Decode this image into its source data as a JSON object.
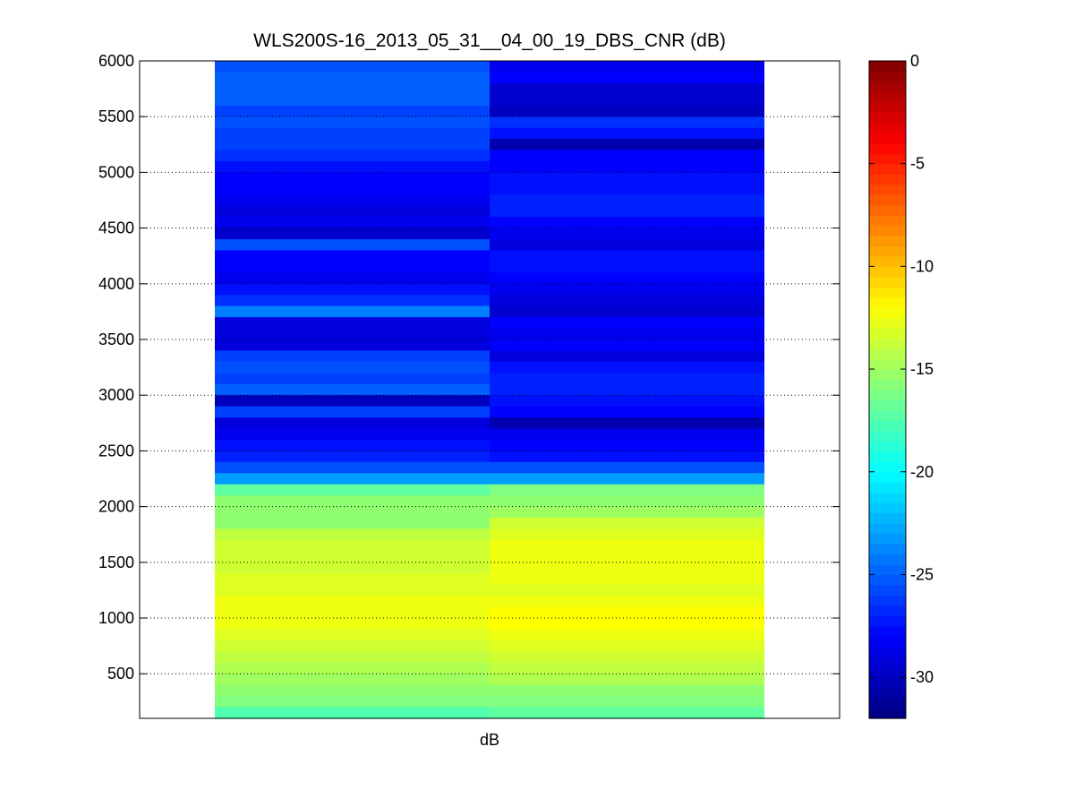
{
  "chart_data": {
    "type": "heatmap",
    "title": "WLS200S-16_2013_05_31__04_00_19_DBS_CNR (dB)",
    "xlabel": "dB",
    "ylabel": "",
    "ylim": [
      100,
      6000
    ],
    "yticks": [
      500,
      1000,
      1500,
      2000,
      2500,
      3000,
      3500,
      4000,
      4500,
      5000,
      5500,
      6000
    ],
    "grid": true,
    "colormap": "jet",
    "clim": [
      -32,
      0
    ],
    "colorbar": {
      "ticks": [
        0,
        -5,
        -10,
        -15,
        -20,
        -25,
        -30
      ]
    },
    "bin_height": 100,
    "heights": [
      6000,
      5900,
      5800,
      5700,
      5600,
      5500,
      5400,
      5300,
      5200,
      5100,
      5000,
      4900,
      4800,
      4700,
      4600,
      4500,
      4400,
      4300,
      4200,
      4100,
      4000,
      3900,
      3800,
      3700,
      3600,
      3500,
      3400,
      3300,
      3200,
      3100,
      3000,
      2900,
      2800,
      2700,
      2600,
      2500,
      2400,
      2300,
      2200,
      2100,
      2000,
      1900,
      1800,
      1700,
      1600,
      1500,
      1400,
      1300,
      1200,
      1100,
      1000,
      900,
      800,
      700,
      600,
      500,
      400,
      300,
      200,
      100
    ],
    "series": [
      {
        "values": [
          -25.5,
          -25.0,
          -25.0,
          -25.0,
          -26.0,
          -25.5,
          -26.0,
          -26.0,
          -26.5,
          -27.5,
          -28.0,
          -28.0,
          -28.5,
          -29.0,
          -28.5,
          -29.5,
          -25.5,
          -28.0,
          -28.0,
          -28.5,
          -27.5,
          -26.5,
          -24.0,
          -29.0,
          -29.0,
          -29.0,
          -26.0,
          -25.5,
          -26.0,
          -25.0,
          -30.0,
          -26.0,
          -29.0,
          -28.5,
          -27.5,
          -27.0,
          -25.5,
          -23.0,
          -17.0,
          -15.5,
          -15.5,
          -15.5,
          -14.0,
          -13.5,
          -13.5,
          -13.5,
          -13.0,
          -13.0,
          -12.5,
          -12.5,
          -12.5,
          -13.0,
          -13.5,
          -14.0,
          -14.5,
          -15.0,
          -15.5,
          -16.0,
          -17.5,
          -18.0
        ]
      },
      {
        "values": [
          -28.5,
          -28.0,
          -29.5,
          -29.5,
          -30.0,
          -26.5,
          -27.5,
          -30.5,
          -28.0,
          -28.0,
          -27.5,
          -27.5,
          -27.0,
          -27.0,
          -28.0,
          -28.5,
          -29.0,
          -27.5,
          -27.5,
          -28.0,
          -28.5,
          -29.0,
          -29.5,
          -28.0,
          -28.5,
          -28.0,
          -29.0,
          -27.5,
          -27.0,
          -27.0,
          -27.5,
          -28.0,
          -30.5,
          -28.5,
          -28.0,
          -27.5,
          -25.5,
          -23.0,
          -16.0,
          -15.5,
          -15.0,
          -13.5,
          -13.0,
          -12.5,
          -12.5,
          -12.5,
          -12.5,
          -13.0,
          -12.5,
          -12.0,
          -12.0,
          -12.5,
          -13.0,
          -13.5,
          -14.0,
          -14.5,
          -15.5,
          -16.0,
          -17.0,
          -17.5
        ]
      }
    ]
  }
}
